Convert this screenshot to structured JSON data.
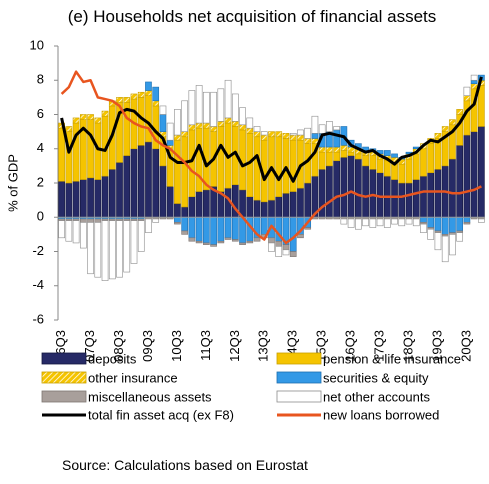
{
  "chart_data": {
    "type": "bar",
    "title": "(e) Households net acquisition of financial assets",
    "y_label": "% of GDP",
    "source": "Source: Calculations based on Eurostat",
    "categories": [
      "06Q3",
      null,
      null,
      null,
      "07Q3",
      null,
      null,
      null,
      "08Q3",
      null,
      null,
      null,
      "09Q3",
      null,
      null,
      null,
      "10Q3",
      null,
      null,
      null,
      "11Q3",
      null,
      null,
      null,
      "12Q3",
      null,
      null,
      null,
      "13Q3",
      null,
      null,
      null,
      "14Q3",
      null,
      null,
      null,
      "15Q3",
      null,
      null,
      null,
      "16Q3",
      null,
      null,
      null,
      "17Q3",
      null,
      null,
      null,
      "18Q3",
      null,
      null,
      null,
      "19Q3",
      null,
      null,
      null,
      "20Q3",
      null,
      null
    ],
    "ylim": [
      -6,
      10
    ],
    "yticks": [
      -6,
      -4,
      -2,
      0,
      2,
      4,
      6,
      8,
      10
    ],
    "series": [
      {
        "name": "deposits",
        "color": "#262a66",
        "values": [
          2.1,
          2.0,
          2.1,
          2.2,
          2.3,
          2.2,
          2.4,
          2.8,
          3.2,
          3.6,
          4.0,
          4.2,
          4.4,
          4.0,
          3.0,
          1.8,
          0.8,
          0.6,
          1.2,
          1.5,
          1.6,
          1.8,
          1.5,
          1.7,
          1.9,
          1.6,
          1.2,
          1.0,
          0.9,
          1.0,
          1.2,
          1.4,
          1.5,
          1.7,
          2.0,
          2.4,
          2.8,
          3.0,
          3.3,
          3.5,
          3.6,
          3.4,
          3.0,
          2.8,
          2.6,
          2.4,
          2.2,
          2.0,
          2.0,
          2.2,
          2.4,
          2.6,
          2.8,
          3.0,
          3.4,
          4.2,
          4.8,
          5.0,
          5.3
        ]
      },
      {
        "name": "pension & life insurance",
        "color": "#f5c400",
        "values": [
          3.1,
          3.0,
          3.4,
          3.5,
          3.4,
          3.3,
          3.5,
          3.7,
          3.5,
          3.1,
          2.9,
          2.8,
          2.7,
          2.5,
          1.7,
          2.1,
          3.7,
          4.1,
          3.9,
          3.7,
          3.6,
          3.2,
          3.8,
          3.8,
          3.4,
          3.5,
          3.7,
          3.7,
          3.6,
          3.7,
          3.5,
          3.2,
          3.0,
          2.8,
          2.3,
          1.9,
          1.0,
          0.8,
          0.5,
          0.4,
          0.2,
          0.3,
          0.6,
          0.8,
          0.8,
          0.9,
          1.0,
          1.1,
          1.4,
          1.5,
          1.6,
          1.7,
          1.8,
          2.0,
          2.0,
          1.8,
          2.0,
          2.5,
          2.4
        ]
      },
      {
        "name": "other insurance",
        "color": "#f5c400",
        "hatch": true,
        "values": [
          0.3,
          0.3,
          0.3,
          0.3,
          0.3,
          0.3,
          0.3,
          0.3,
          0.3,
          0.3,
          0.3,
          0.3,
          0.3,
          0.3,
          0.3,
          0.3,
          0.3,
          0.3,
          0.3,
          0.3,
          0.3,
          0.3,
          0.3,
          0.3,
          0.3,
          0.3,
          0.3,
          0.3,
          0.3,
          0.3,
          0.3,
          0.3,
          0.3,
          0.3,
          0.3,
          0.3,
          0.3,
          0.3,
          0.3,
          0.3,
          0.3,
          0.3,
          0.3,
          0.3,
          0.3,
          0.3,
          0.3,
          0.3,
          0.3,
          0.3,
          0.3,
          0.3,
          0.3,
          0.3,
          0.3,
          0.3,
          0.3,
          0.3,
          0.3
        ]
      },
      {
        "name": "securities & equity",
        "color": "#3399e6",
        "values": [
          -0.1,
          -0.1,
          -0.1,
          -0.1,
          -0.1,
          -0.1,
          -0.1,
          -0.1,
          -0.1,
          -0.1,
          -0.1,
          -0.1,
          0.5,
          0.8,
          1.0,
          0.3,
          -0.3,
          -0.8,
          -1.2,
          -1.4,
          -1.5,
          -1.6,
          -1.4,
          -1.2,
          -1.3,
          -1.5,
          -1.4,
          -1.2,
          -1.0,
          -1.2,
          -1.4,
          -1.6,
          -2.0,
          -1.0,
          -0.6,
          0.3,
          0.8,
          0.9,
          1.0,
          1.1,
          0.4,
          0.3,
          0.2,
          0.1,
          0.2,
          0.3,
          0.2,
          0.1,
          0.1,
          0.1,
          -0.3,
          -0.6,
          -0.8,
          -1.0,
          -0.9,
          -0.8,
          -0.3,
          0.2,
          0.3
        ]
      },
      {
        "name": "miscellaneous assets",
        "color": "#a89f9b",
        "values": [
          -0.1,
          -0.1,
          -0.1,
          -0.2,
          -0.2,
          -0.2,
          -0.1,
          -0.1,
          -0.1,
          -0.1,
          -0.1,
          -0.1,
          -0.1,
          -0.1,
          -0.1,
          -0.1,
          -0.1,
          -0.2,
          -0.2,
          -0.1,
          -0.1,
          -0.1,
          -0.1,
          -0.1,
          -0.1,
          -0.1,
          -0.1,
          -0.2,
          -0.2,
          -0.3,
          -0.3,
          -0.3,
          -0.3,
          -0.2,
          -0.1,
          -0.1,
          -0.1,
          -0.1,
          -0.1,
          -0.1,
          -0.1,
          -0.1,
          -0.1,
          -0.1,
          -0.1,
          -0.1,
          -0.1,
          -0.1,
          -0.1,
          -0.1,
          -0.1,
          -0.1,
          -0.1,
          -0.1,
          -0.1,
          -0.1,
          -0.1,
          -0.1,
          -0.1
        ]
      },
      {
        "name": "net other accounts",
        "color": "#ffffff",
        "stroke": "#8c8c8c",
        "values": [
          -1.0,
          -1.2,
          -1.3,
          -1.5,
          -3.0,
          -3.2,
          -3.5,
          -3.4,
          -3.3,
          -3.0,
          -2.5,
          -1.8,
          -0.8,
          -0.2,
          0.5,
          1.0,
          1.5,
          1.8,
          2.0,
          2.2,
          1.8,
          2.0,
          1.9,
          2.2,
          1.6,
          1.0,
          0.6,
          0.3,
          0.2,
          -0.5,
          -0.6,
          -0.3,
          0.1,
          0.3,
          0.6,
          1.0,
          0.5,
          0.6,
          0.2,
          -0.3,
          -0.5,
          -0.6,
          -0.4,
          -0.5,
          -0.4,
          -0.5,
          -0.3,
          -0.4,
          -0.3,
          -0.4,
          -0.5,
          -0.6,
          -1.0,
          -1.5,
          -1.2,
          -0.5,
          0.5,
          0.3,
          -0.2
        ]
      },
      {
        "name": "total fin asset acq (ex F8)",
        "type": "line",
        "color": "#000000",
        "values": [
          5.8,
          3.8,
          4.8,
          5.2,
          4.8,
          4.0,
          3.9,
          4.8,
          6.1,
          6.3,
          6.2,
          5.8,
          5.5,
          5.0,
          4.6,
          3.5,
          3.2,
          3.2,
          3.3,
          4.2,
          3.0,
          3.4,
          4.2,
          3.5,
          3.8,
          3.0,
          3.2,
          3.6,
          2.2,
          2.9,
          2.2,
          2.9,
          2.1,
          3.0,
          3.3,
          3.8,
          4.8,
          4.9,
          4.8,
          4.7,
          4.2,
          4.0,
          3.8,
          3.9,
          3.6,
          3.4,
          3.1,
          3.5,
          3.6,
          3.8,
          4.2,
          4.5,
          4.4,
          4.7,
          5.0,
          5.5,
          6.2,
          6.6,
          8.2
        ]
      },
      {
        "name": "new loans borrowed",
        "type": "line",
        "color": "#e8551f",
        "values": [
          7.2,
          7.6,
          8.5,
          7.9,
          8.0,
          7.0,
          6.9,
          6.8,
          6.5,
          5.8,
          5.5,
          5.3,
          5.2,
          4.5,
          4.2,
          4.0,
          3.6,
          3.2,
          2.7,
          2.4,
          1.9,
          1.6,
          1.4,
          1.1,
          0.5,
          0.0,
          -0.5,
          -1.0,
          -1.3,
          -0.5,
          -1.0,
          -1.5,
          -1.2,
          -0.8,
          -0.3,
          0.2,
          0.6,
          0.9,
          1.2,
          1.3,
          1.5,
          1.3,
          1.2,
          1.3,
          1.2,
          1.2,
          1.2,
          1.2,
          1.3,
          1.4,
          1.5,
          1.5,
          1.5,
          1.5,
          1.4,
          1.4,
          1.5,
          1.6,
          1.8
        ]
      }
    ]
  }
}
